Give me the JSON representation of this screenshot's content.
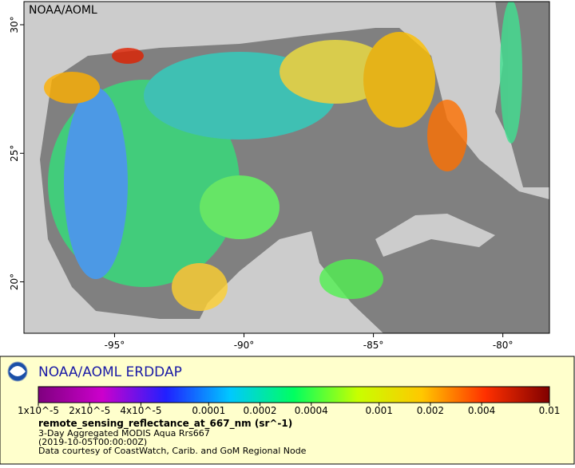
{
  "map": {
    "label": "NOAA/AOML",
    "xlim": [
      -98.5,
      -78.2
    ],
    "ylim": [
      18,
      30.9
    ],
    "xticks": [
      {
        "value": -95,
        "label": "-95°"
      },
      {
        "value": -90,
        "label": "-90°"
      },
      {
        "value": -85,
        "label": "-85°"
      },
      {
        "value": -80,
        "label": "-80°"
      }
    ],
    "yticks": [
      {
        "value": 20,
        "label": "20°"
      },
      {
        "value": 25,
        "label": "25°"
      },
      {
        "value": 30,
        "label": "30°"
      }
    ]
  },
  "footer": {
    "title": "NOAA/AOML ERDDAP",
    "colorbar": {
      "log_scale": true,
      "lim": [
        1e-05,
        0.01
      ],
      "colors": [
        "#7f007f",
        "#cc00cc",
        "#2020ff",
        "#00c8ff",
        "#00ff60",
        "#c8ff00",
        "#ffc800",
        "#ff3000",
        "#800000"
      ],
      "ticks": [
        {
          "value": 1e-05,
          "label": "1x10^-5"
        },
        {
          "value": 2e-05,
          "label": "2x10^-5"
        },
        {
          "value": 4e-05,
          "label": "4x10^-5"
        },
        {
          "value": 0.0001,
          "label": "0.0001"
        },
        {
          "value": 0.0002,
          "label": "0.0002"
        },
        {
          "value": 0.0004,
          "label": "0.0004"
        },
        {
          "value": 0.001,
          "label": "0.001"
        },
        {
          "value": 0.002,
          "label": "0.002"
        },
        {
          "value": 0.004,
          "label": "0.004"
        },
        {
          "value": 0.01,
          "label": "0.01"
        }
      ]
    },
    "variable": "remote_sensing_reflectance_at_667_nm (sr^-1)",
    "lines": [
      "3-Day Aggregated MODIS Aqua Rrs667",
      "(2019-10-05T00:00:00Z)",
      "Data courtesy of CoastWatch, Carib. and GoM Regional Node"
    ]
  }
}
